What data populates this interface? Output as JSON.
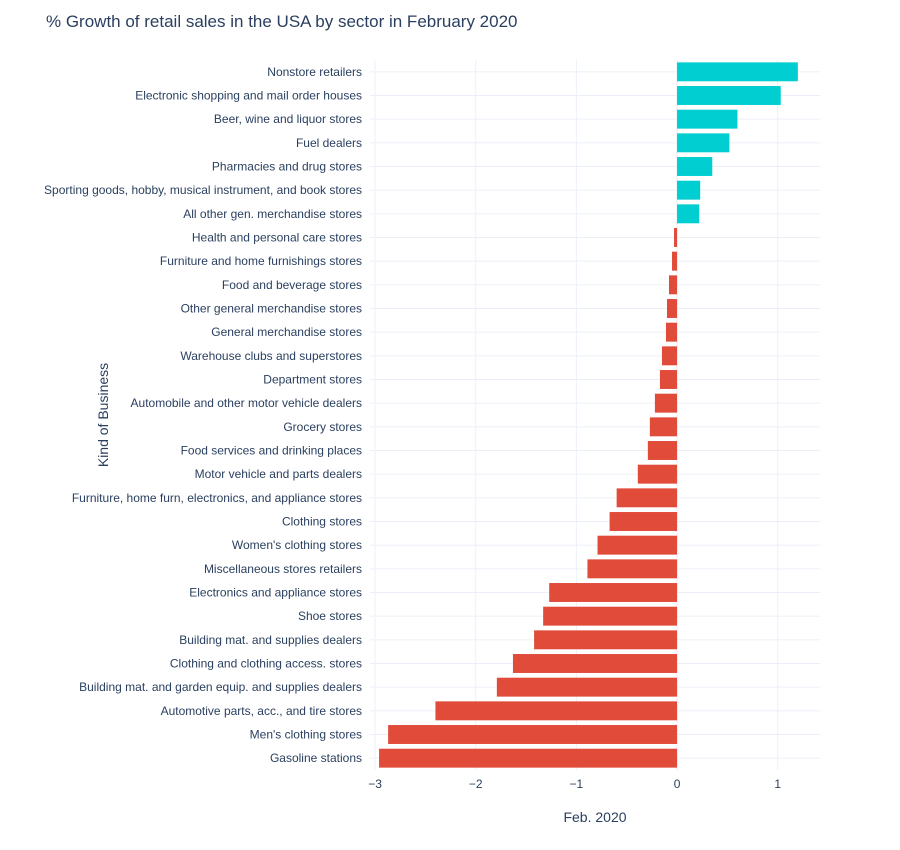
{
  "chart_data": {
    "type": "bar",
    "orientation": "horizontal",
    "title": "% Growth of retail sales in the USA by sector in February 2020",
    "xlabel": "Feb. 2020",
    "ylabel": "Kind of Business",
    "xlim": [
      -3.05,
      1.42
    ],
    "xticks": [
      -3,
      -2,
      -1,
      0,
      1
    ],
    "xtick_labels": [
      "−3",
      "−2",
      "−1",
      "0",
      "1"
    ],
    "grid": true,
    "colors": {
      "positive": "#00ced1",
      "negative": "#e04b3a"
    },
    "categories": [
      "Nonstore retailers",
      "Electronic shopping and mail order houses",
      "Beer, wine and liquor stores",
      "Fuel dealers",
      "Pharmacies and drug stores",
      "Sporting goods, hobby, musical instrument, and book stores",
      "All other gen. merchandise stores",
      "Health and personal care stores",
      "Furniture and home furnishings stores",
      "Food and beverage stores",
      "Other general merchandise stores",
      "General merchandise stores",
      "Warehouse clubs and superstores",
      "Department stores",
      "Automobile and other motor vehicle dealers",
      "Grocery stores",
      "Food services and drinking places",
      "Motor vehicle and parts dealers",
      "Furniture, home furn, electronics, and appliance stores",
      "Clothing stores",
      "Women's clothing stores",
      "Miscellaneous stores retailers",
      "Electronics and appliance stores",
      "Shoe stores",
      "Building mat. and supplies dealers",
      "Clothing and clothing access. stores",
      "Building mat. and garden equip. and supplies dealers",
      "Automotive parts, acc., and tire stores",
      "Men's clothing stores",
      "Gasoline stations"
    ],
    "values": [
      1.2,
      1.03,
      0.6,
      0.52,
      0.35,
      0.23,
      0.22,
      -0.03,
      -0.05,
      -0.08,
      -0.1,
      -0.11,
      -0.15,
      -0.17,
      -0.22,
      -0.27,
      -0.29,
      -0.39,
      -0.6,
      -0.67,
      -0.79,
      -0.89,
      -1.27,
      -1.33,
      -1.42,
      -1.63,
      -1.79,
      -2.4,
      -2.87,
      -2.96
    ]
  }
}
